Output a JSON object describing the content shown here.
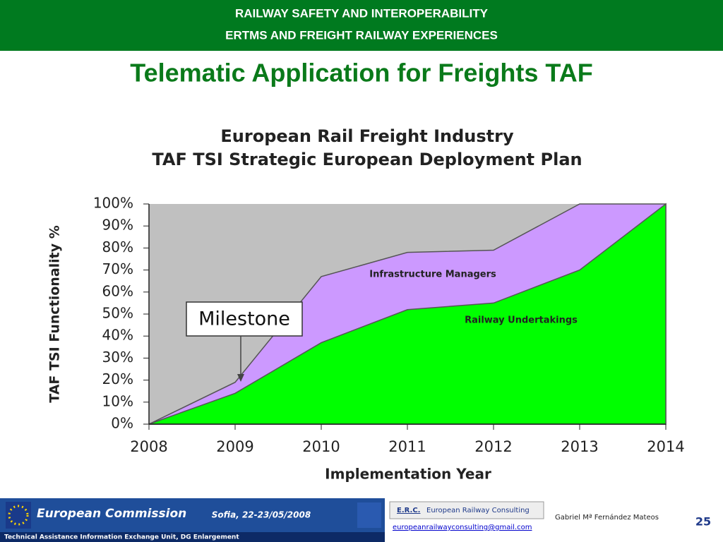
{
  "header": {
    "line1": "RAILWAY SAFETY AND INTEROPERABILITY",
    "line2": "ERTMS AND FREIGHT RAILWAY EXPERIENCES"
  },
  "title": "Telematic Application for Freights TAF",
  "chart_data": {
    "type": "area",
    "title": [
      "European Rail Freight Industry",
      "TAF TSI Strategic European Deployment Plan"
    ],
    "y_label": "TAF TSI Functionality  %",
    "x_label": "Implementation Year",
    "x": [
      2008,
      2009,
      2010,
      2011,
      2012,
      2013,
      2014
    ],
    "xlim": [
      2008,
      2014
    ],
    "xticks": [
      2008,
      2009,
      2010,
      2011,
      2012,
      2013,
      2014
    ],
    "ylim": [
      0,
      100
    ],
    "yticks": [
      {
        "value": 0,
        "label": "0%"
      },
      {
        "value": 10,
        "label": "10%"
      },
      {
        "value": 20,
        "label": "20%"
      },
      {
        "value": 30,
        "label": "30%"
      },
      {
        "value": 40,
        "label": "40%"
      },
      {
        "value": 50,
        "label": "50%"
      },
      {
        "value": 60,
        "label": "60%"
      },
      {
        "value": 70,
        "label": "70%"
      },
      {
        "value": 80,
        "label": "80%"
      },
      {
        "value": 90,
        "label": "90%"
      },
      {
        "value": 100,
        "label": "100%"
      }
    ],
    "background": "#c0c0c0",
    "series": [
      {
        "name": "Infrastructure Managers",
        "color": "#cc99ff",
        "values": [
          0,
          19,
          67,
          78,
          79,
          100,
          100
        ]
      },
      {
        "name": "Railway Undertakings",
        "color": "#00ff00",
        "values": [
          0,
          14,
          37,
          52,
          55,
          70,
          100
        ]
      }
    ],
    "annotations": [
      {
        "text": "Milestone",
        "x": 2009
      }
    ]
  },
  "footer": {
    "commission": "European Commission",
    "place_date": "Sofia, 22-23/05/2008",
    "unit": "Technical Assistance Information Exchange Unit, DG Enlargement",
    "erc": "E.R.C.",
    "erc_name": "European Railway Consulting",
    "email": "europeanrailwayconsulting@gmail.com",
    "author": "Gabriel Mª Fernández Mateos",
    "page": "25"
  }
}
